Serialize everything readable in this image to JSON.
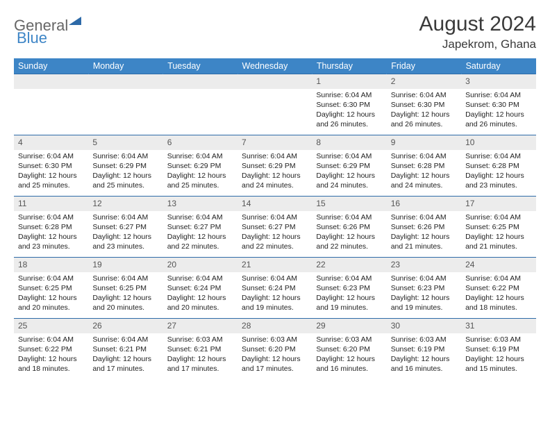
{
  "brand": {
    "part1": "General",
    "part2": "Blue"
  },
  "title": "August 2024",
  "location": "Japekrom, Ghana",
  "colors": {
    "header_bg": "#3d85c6",
    "header_text": "#ffffff",
    "daynum_bg": "#ececec",
    "border": "#2d6aa8",
    "text": "#222222"
  },
  "weekdays": [
    "Sunday",
    "Monday",
    "Tuesday",
    "Wednesday",
    "Thursday",
    "Friday",
    "Saturday"
  ],
  "weeks": [
    [
      {
        "n": "",
        "sr": "",
        "ss": "",
        "dl": ""
      },
      {
        "n": "",
        "sr": "",
        "ss": "",
        "dl": ""
      },
      {
        "n": "",
        "sr": "",
        "ss": "",
        "dl": ""
      },
      {
        "n": "",
        "sr": "",
        "ss": "",
        "dl": ""
      },
      {
        "n": "1",
        "sr": "Sunrise: 6:04 AM",
        "ss": "Sunset: 6:30 PM",
        "dl": "Daylight: 12 hours and 26 minutes."
      },
      {
        "n": "2",
        "sr": "Sunrise: 6:04 AM",
        "ss": "Sunset: 6:30 PM",
        "dl": "Daylight: 12 hours and 26 minutes."
      },
      {
        "n": "3",
        "sr": "Sunrise: 6:04 AM",
        "ss": "Sunset: 6:30 PM",
        "dl": "Daylight: 12 hours and 26 minutes."
      }
    ],
    [
      {
        "n": "4",
        "sr": "Sunrise: 6:04 AM",
        "ss": "Sunset: 6:30 PM",
        "dl": "Daylight: 12 hours and 25 minutes."
      },
      {
        "n": "5",
        "sr": "Sunrise: 6:04 AM",
        "ss": "Sunset: 6:29 PM",
        "dl": "Daylight: 12 hours and 25 minutes."
      },
      {
        "n": "6",
        "sr": "Sunrise: 6:04 AM",
        "ss": "Sunset: 6:29 PM",
        "dl": "Daylight: 12 hours and 25 minutes."
      },
      {
        "n": "7",
        "sr": "Sunrise: 6:04 AM",
        "ss": "Sunset: 6:29 PM",
        "dl": "Daylight: 12 hours and 24 minutes."
      },
      {
        "n": "8",
        "sr": "Sunrise: 6:04 AM",
        "ss": "Sunset: 6:29 PM",
        "dl": "Daylight: 12 hours and 24 minutes."
      },
      {
        "n": "9",
        "sr": "Sunrise: 6:04 AM",
        "ss": "Sunset: 6:28 PM",
        "dl": "Daylight: 12 hours and 24 minutes."
      },
      {
        "n": "10",
        "sr": "Sunrise: 6:04 AM",
        "ss": "Sunset: 6:28 PM",
        "dl": "Daylight: 12 hours and 23 minutes."
      }
    ],
    [
      {
        "n": "11",
        "sr": "Sunrise: 6:04 AM",
        "ss": "Sunset: 6:28 PM",
        "dl": "Daylight: 12 hours and 23 minutes."
      },
      {
        "n": "12",
        "sr": "Sunrise: 6:04 AM",
        "ss": "Sunset: 6:27 PM",
        "dl": "Daylight: 12 hours and 23 minutes."
      },
      {
        "n": "13",
        "sr": "Sunrise: 6:04 AM",
        "ss": "Sunset: 6:27 PM",
        "dl": "Daylight: 12 hours and 22 minutes."
      },
      {
        "n": "14",
        "sr": "Sunrise: 6:04 AM",
        "ss": "Sunset: 6:27 PM",
        "dl": "Daylight: 12 hours and 22 minutes."
      },
      {
        "n": "15",
        "sr": "Sunrise: 6:04 AM",
        "ss": "Sunset: 6:26 PM",
        "dl": "Daylight: 12 hours and 22 minutes."
      },
      {
        "n": "16",
        "sr": "Sunrise: 6:04 AM",
        "ss": "Sunset: 6:26 PM",
        "dl": "Daylight: 12 hours and 21 minutes."
      },
      {
        "n": "17",
        "sr": "Sunrise: 6:04 AM",
        "ss": "Sunset: 6:25 PM",
        "dl": "Daylight: 12 hours and 21 minutes."
      }
    ],
    [
      {
        "n": "18",
        "sr": "Sunrise: 6:04 AM",
        "ss": "Sunset: 6:25 PM",
        "dl": "Daylight: 12 hours and 20 minutes."
      },
      {
        "n": "19",
        "sr": "Sunrise: 6:04 AM",
        "ss": "Sunset: 6:25 PM",
        "dl": "Daylight: 12 hours and 20 minutes."
      },
      {
        "n": "20",
        "sr": "Sunrise: 6:04 AM",
        "ss": "Sunset: 6:24 PM",
        "dl": "Daylight: 12 hours and 20 minutes."
      },
      {
        "n": "21",
        "sr": "Sunrise: 6:04 AM",
        "ss": "Sunset: 6:24 PM",
        "dl": "Daylight: 12 hours and 19 minutes."
      },
      {
        "n": "22",
        "sr": "Sunrise: 6:04 AM",
        "ss": "Sunset: 6:23 PM",
        "dl": "Daylight: 12 hours and 19 minutes."
      },
      {
        "n": "23",
        "sr": "Sunrise: 6:04 AM",
        "ss": "Sunset: 6:23 PM",
        "dl": "Daylight: 12 hours and 19 minutes."
      },
      {
        "n": "24",
        "sr": "Sunrise: 6:04 AM",
        "ss": "Sunset: 6:22 PM",
        "dl": "Daylight: 12 hours and 18 minutes."
      }
    ],
    [
      {
        "n": "25",
        "sr": "Sunrise: 6:04 AM",
        "ss": "Sunset: 6:22 PM",
        "dl": "Daylight: 12 hours and 18 minutes."
      },
      {
        "n": "26",
        "sr": "Sunrise: 6:04 AM",
        "ss": "Sunset: 6:21 PM",
        "dl": "Daylight: 12 hours and 17 minutes."
      },
      {
        "n": "27",
        "sr": "Sunrise: 6:03 AM",
        "ss": "Sunset: 6:21 PM",
        "dl": "Daylight: 12 hours and 17 minutes."
      },
      {
        "n": "28",
        "sr": "Sunrise: 6:03 AM",
        "ss": "Sunset: 6:20 PM",
        "dl": "Daylight: 12 hours and 17 minutes."
      },
      {
        "n": "29",
        "sr": "Sunrise: 6:03 AM",
        "ss": "Sunset: 6:20 PM",
        "dl": "Daylight: 12 hours and 16 minutes."
      },
      {
        "n": "30",
        "sr": "Sunrise: 6:03 AM",
        "ss": "Sunset: 6:19 PM",
        "dl": "Daylight: 12 hours and 16 minutes."
      },
      {
        "n": "31",
        "sr": "Sunrise: 6:03 AM",
        "ss": "Sunset: 6:19 PM",
        "dl": "Daylight: 12 hours and 15 minutes."
      }
    ]
  ]
}
